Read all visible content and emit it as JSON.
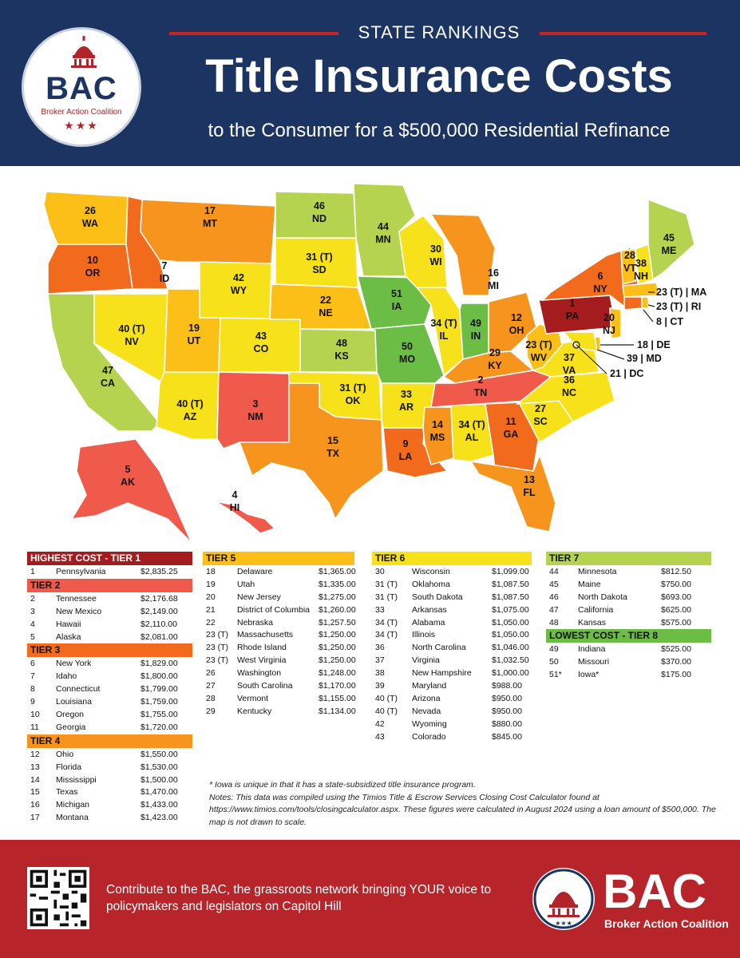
{
  "header": {
    "kicker": "STATE RANKINGS",
    "title": "Title Insurance Costs",
    "subtitle": "to the Consumer for a $500,000 Residential Refinance",
    "logo_text": "BAC",
    "logo_sub": "Broker Action Coalition",
    "logo_stars": "★★★"
  },
  "colors": {
    "navy": "#1c3461",
    "red": "#b7252b",
    "tier1": "#a51c1f",
    "tier2": "#ef5a4a",
    "tier3": "#f26b1d",
    "tier4": "#f7941e",
    "tier5": "#fbbf18",
    "tier6": "#f6e11a",
    "tier7": "#b5d34e",
    "tier8": "#6cbd45"
  },
  "map_labels": [
    {
      "rank": "26",
      "abbr": "WA"
    },
    {
      "rank": "10",
      "abbr": "OR"
    },
    {
      "rank": "47",
      "abbr": "CA"
    },
    {
      "rank": "7",
      "abbr": "ID"
    },
    {
      "rank": "40 (T)",
      "abbr": "NV"
    },
    {
      "rank": "17",
      "abbr": "MT"
    },
    {
      "rank": "42",
      "abbr": "WY"
    },
    {
      "rank": "19",
      "abbr": "UT"
    },
    {
      "rank": "40 (T)",
      "abbr": "AZ"
    },
    {
      "rank": "43",
      "abbr": "CO"
    },
    {
      "rank": "3",
      "abbr": "NM"
    },
    {
      "rank": "46",
      "abbr": "ND"
    },
    {
      "rank": "31 (T)",
      "abbr": "SD"
    },
    {
      "rank": "22",
      "abbr": "NE"
    },
    {
      "rank": "48",
      "abbr": "KS"
    },
    {
      "rank": "31 (T)",
      "abbr": "OK"
    },
    {
      "rank": "15",
      "abbr": "TX"
    },
    {
      "rank": "44",
      "abbr": "MN"
    },
    {
      "rank": "51",
      "abbr": "IA"
    },
    {
      "rank": "50",
      "abbr": "MO"
    },
    {
      "rank": "33",
      "abbr": "AR"
    },
    {
      "rank": "9",
      "abbr": "LA"
    },
    {
      "rank": "30",
      "abbr": "WI"
    },
    {
      "rank": "34 (T)",
      "abbr": "IL"
    },
    {
      "rank": "16",
      "abbr": "MI"
    },
    {
      "rank": "49",
      "abbr": "IN"
    },
    {
      "rank": "12",
      "abbr": "OH"
    },
    {
      "rank": "29",
      "abbr": "KY"
    },
    {
      "rank": "2",
      "abbr": "TN"
    },
    {
      "rank": "14",
      "abbr": "MS"
    },
    {
      "rank": "34 (T)",
      "abbr": "AL"
    },
    {
      "rank": "11",
      "abbr": "GA"
    },
    {
      "rank": "13",
      "abbr": "FL"
    },
    {
      "rank": "27",
      "abbr": "SC"
    },
    {
      "rank": "36",
      "abbr": "NC"
    },
    {
      "rank": "37",
      "abbr": "VA"
    },
    {
      "rank": "23 (T)",
      "abbr": "WV"
    },
    {
      "rank": "1",
      "abbr": "PA"
    },
    {
      "rank": "6",
      "abbr": "NY"
    },
    {
      "rank": "20",
      "abbr": "NJ"
    },
    {
      "rank": "28",
      "abbr": "VT"
    },
    {
      "rank": "38",
      "abbr": "NH"
    },
    {
      "rank": "45",
      "abbr": "ME"
    },
    {
      "rank": "5",
      "abbr": "AK"
    },
    {
      "rank": "4",
      "abbr": "HI"
    }
  ],
  "callouts": [
    "23 (T) | MA",
    "23 (T) | RI",
    "8 | CT",
    "18 | DE",
    "39 | MD",
    "21 | DC"
  ],
  "tiers": [
    {
      "name": "HIGHEST COST - TIER 1",
      "rows": [
        [
          "1",
          "Pennsylvania",
          "$2,835.25"
        ]
      ]
    },
    {
      "name": "TIER 2",
      "rows": [
        [
          "2",
          "Tennessee",
          "$2,176.68"
        ],
        [
          "3",
          "New Mexico",
          "$2,149.00"
        ],
        [
          "4",
          "Hawaii",
          "$2,110.00"
        ],
        [
          "5",
          "Alaska",
          "$2,081.00"
        ]
      ]
    },
    {
      "name": "TIER 3",
      "rows": [
        [
          "6",
          "New York",
          "$1,829.00"
        ],
        [
          "7",
          "Idaho",
          "$1,800.00"
        ],
        [
          "8",
          "Connecticut",
          "$1,799.00"
        ],
        [
          "9",
          "Louisiana",
          "$1,759.00"
        ],
        [
          "10",
          "Oregon",
          "$1,755.00"
        ],
        [
          "11",
          "Georgia",
          "$1,720.00"
        ]
      ]
    },
    {
      "name": "TIER 4",
      "rows": [
        [
          "12",
          "Ohio",
          "$1,550.00"
        ],
        [
          "13",
          "Florida",
          "$1,530.00"
        ],
        [
          "14",
          "Mississippi",
          "$1,500.00"
        ],
        [
          "15",
          "Texas",
          "$1,470.00"
        ],
        [
          "16",
          "Michigan",
          "$1,433.00"
        ],
        [
          "17",
          "Montana",
          "$1,423.00"
        ]
      ]
    },
    {
      "name": "TIER 5",
      "rows": [
        [
          "18",
          "Delaware",
          "$1,365.00"
        ],
        [
          "19",
          "Utah",
          "$1,335.00"
        ],
        [
          "20",
          "New Jersey",
          "$1,275.00"
        ],
        [
          "21",
          "District of Columbia",
          "$1,260.00"
        ],
        [
          "22",
          "Nebraska",
          "$1,257.50"
        ],
        [
          "23 (T)",
          "Massachusetts",
          "$1,250.00"
        ],
        [
          "23 (T)",
          "Rhode Island",
          "$1,250.00"
        ],
        [
          "23 (T)",
          "West Virginia",
          "$1,250.00"
        ],
        [
          "26",
          "Washington",
          "$1,248.00"
        ],
        [
          "27",
          "South Carolina",
          "$1,170.00"
        ],
        [
          "28",
          "Vermont",
          "$1,155.00"
        ],
        [
          "29",
          "Kentucky",
          "$1,134.00"
        ]
      ]
    },
    {
      "name": "TIER 6",
      "rows": [
        [
          "30",
          "Wisconsin",
          "$1,099.00"
        ],
        [
          "31 (T)",
          "Oklahoma",
          "$1,087.50"
        ],
        [
          "31 (T)",
          "South Dakota",
          "$1,087.50"
        ],
        [
          "33",
          "Arkansas",
          "$1,075.00"
        ],
        [
          "34 (T)",
          "Alabama",
          "$1,050.00"
        ],
        [
          "34 (T)",
          "Illinois",
          "$1,050.00"
        ],
        [
          "36",
          "North Carolina",
          "$1,046.00"
        ],
        [
          "37",
          "Virginia",
          "$1,032.50"
        ],
        [
          "38",
          "New Hampshire",
          "$1,000.00"
        ],
        [
          "39",
          "Maryland",
          "$988.00"
        ],
        [
          "40 (T)",
          "Arizona",
          "$950.00"
        ],
        [
          "40 (T)",
          "Nevada",
          "$950.00"
        ],
        [
          "42",
          "Wyoming",
          "$880.00"
        ],
        [
          "43",
          "Colorado",
          "$845.00"
        ]
      ]
    },
    {
      "name": "TIER 7",
      "rows": [
        [
          "44",
          "Minnesota",
          "$812.50"
        ],
        [
          "45",
          "Maine",
          "$750.00"
        ],
        [
          "46",
          "North Dakota",
          "$693.00"
        ],
        [
          "47",
          "California",
          "$625.00"
        ],
        [
          "48",
          "Kansas",
          "$575.00"
        ]
      ]
    },
    {
      "name": "LOWEST COST - TIER 8",
      "rows": [
        [
          "49",
          "Indiana",
          "$525.00"
        ],
        [
          "50",
          "Missouri",
          "$370.00"
        ],
        [
          "51*",
          "Iowa*",
          "$175.00"
        ]
      ]
    }
  ],
  "notes": {
    "footnote": "* Iowa is unique in that it has a state-subsidized title insurance program.",
    "source": "Notes: This data was compiled using the Timios Title & Escrow Services Closing Cost Calculator found at https://www.timios.com/tools/closingcalculator.aspx. These figures were calculated in August 2024 using a loan amount of $500,000. The map is not drawn to scale."
  },
  "footer": {
    "cta": "Contribute to the BAC, the grassroots network bringing YOUR voice to policymakers and legislators on Capitol Hill",
    "brand": "BAC",
    "brand_sub": "Broker Action Coalition"
  }
}
